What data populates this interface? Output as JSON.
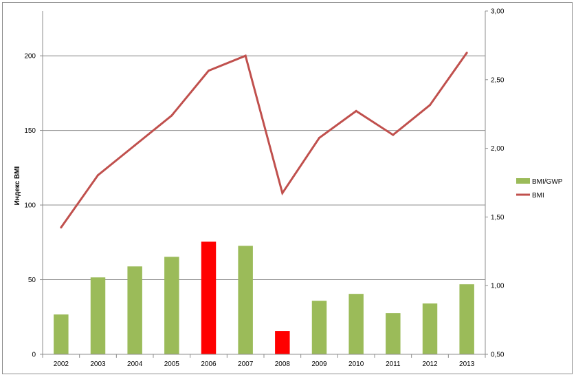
{
  "chart_data": {
    "type": "bar+line",
    "categories": [
      "2002",
      "2003",
      "2004",
      "2005",
      "2006",
      "2007",
      "2008",
      "2009",
      "2010",
      "2011",
      "2012",
      "2013"
    ],
    "series": [
      {
        "name": "BMI/GWP",
        "kind": "bar",
        "axis": "right",
        "values": [
          0.79,
          1.06,
          1.14,
          1.21,
          1.32,
          1.29,
          0.67,
          0.89,
          0.94,
          0.8,
          0.87,
          1.01
        ],
        "color": "#9bbb59",
        "highlight_color": "#ff0000",
        "highlight_categories": [
          "2006",
          "2008"
        ]
      },
      {
        "name": "BMI",
        "kind": "line",
        "axis": "left",
        "values": [
          85,
          120,
          140,
          160,
          190,
          200,
          108,
          145,
          163,
          147,
          167,
          202
        ],
        "color": "#c0504d"
      }
    ],
    "ylabel": "Индекс BMI",
    "ylim": [
      0,
      230
    ],
    "yticks": [
      0,
      50,
      100,
      150,
      200
    ],
    "ytick_labels": [
      "0",
      "50",
      "100",
      "150",
      "200"
    ],
    "y2lim": [
      0.5,
      3.0
    ],
    "y2ticks": [
      0.5,
      1.0,
      1.5,
      2.0,
      2.5,
      3.0
    ],
    "y2tick_labels": [
      "0,50",
      "1,00",
      "1,50",
      "2,00",
      "2,50",
      "3,00"
    ],
    "grid": true,
    "legend_position": "right"
  }
}
